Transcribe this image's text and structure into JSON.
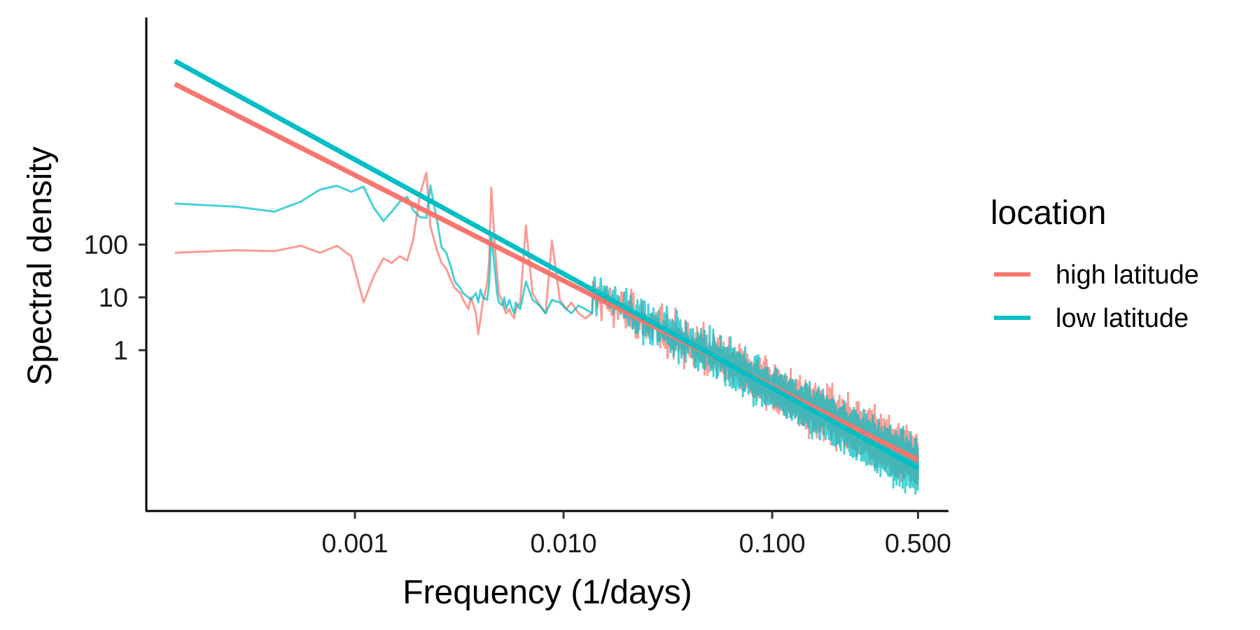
{
  "chart_data": {
    "type": "line",
    "xlabel": "Frequency (1/days)",
    "ylabel": "Spectral density",
    "x_scale": "log10",
    "y_scale": "log10",
    "xlim": [
      0.0001,
      0.7
    ],
    "ylim": [
      0.0009,
      2000000
    ],
    "x_ticks": [
      0.001,
      0.01,
      0.1,
      0.5
    ],
    "x_tick_labels": [
      "0.001",
      "0.010",
      "0.100",
      "0.500"
    ],
    "y_ticks": [
      1,
      10,
      100
    ],
    "y_tick_labels": [
      "1",
      "10",
      "100"
    ],
    "grid": false,
    "legend": {
      "title": "location",
      "placement": "right",
      "entries": [
        "high latitude",
        "low latitude"
      ]
    },
    "series": [
      {
        "name": "high latitude",
        "color": "#F8766D",
        "kind": "spectrum",
        "x": [
          0.000137,
          0.00027,
          0.00041,
          0.00055,
          0.00068,
          0.00082,
          0.00096,
          0.0011,
          0.00123,
          0.00137,
          0.0015,
          0.00164,
          0.00178,
          0.0019,
          0.00205,
          0.0022,
          0.0023,
          0.00247,
          0.0026,
          0.00274,
          0.0029,
          0.00301,
          0.0032,
          0.0033,
          0.0035,
          0.0036,
          0.0038,
          0.0039,
          0.004,
          0.0041,
          0.0043,
          0.0044,
          0.0045,
          0.0047,
          0.0048,
          0.0049,
          0.0051,
          0.0052,
          0.0053,
          0.0055,
          0.0056,
          0.0058,
          0.0059,
          0.0062,
          0.0066,
          0.0071,
          0.0077,
          0.0082,
          0.0088,
          0.0096,
          0.0103,
          0.0109,
          0.0118,
          0.0127,
          0.0137
        ],
        "y": [
          70,
          78,
          75,
          95,
          70,
          95,
          60,
          8,
          25,
          55,
          45,
          60,
          50,
          120,
          900,
          2300,
          220,
          80,
          45,
          35,
          20,
          15,
          12,
          9,
          6,
          10,
          5,
          2,
          4,
          8,
          18,
          50,
          1200,
          80,
          30,
          12,
          8,
          6,
          5,
          6,
          5,
          4,
          6,
          8,
          230,
          12,
          7,
          5,
          120,
          9,
          6,
          8,
          5,
          4,
          5
        ]
      },
      {
        "name": "low latitude",
        "color": "#00BFC4",
        "kind": "spectrum",
        "x": [
          0.000137,
          0.00027,
          0.00041,
          0.00055,
          0.00068,
          0.00082,
          0.00096,
          0.0011,
          0.00123,
          0.00137,
          0.0015,
          0.00164,
          0.00178,
          0.0019,
          0.00205,
          0.0022,
          0.0023,
          0.00247,
          0.0026,
          0.00274,
          0.0029,
          0.00301,
          0.0032,
          0.0033,
          0.0035,
          0.0036,
          0.0038,
          0.0039,
          0.004,
          0.0041,
          0.0043,
          0.0044,
          0.0045,
          0.0047,
          0.0048,
          0.0049,
          0.0051,
          0.0052,
          0.0053,
          0.0055,
          0.0056,
          0.0058,
          0.0059,
          0.0062,
          0.0066,
          0.0071,
          0.0077,
          0.0082,
          0.0088,
          0.0096,
          0.0103,
          0.0109,
          0.0118,
          0.0127,
          0.0137
        ],
        "y": [
          600,
          520,
          420,
          650,
          1100,
          1300,
          1000,
          1250,
          500,
          280,
          420,
          650,
          800,
          450,
          330,
          320,
          1300,
          300,
          90,
          70,
          35,
          20,
          15,
          12,
          10,
          9,
          12,
          8,
          14,
          10,
          9,
          18,
          160,
          30,
          12,
          8,
          7,
          10,
          6,
          9,
          7,
          5,
          8,
          6,
          20,
          9,
          7,
          5,
          9,
          8,
          6,
          5,
          7,
          6,
          5
        ]
      },
      {
        "name": "high latitude",
        "color": "#F8766D",
        "kind": "power-law fit",
        "x": [
          0.000137,
          0.5
        ],
        "y": [
          110000,
          0.0083
        ]
      },
      {
        "name": "low latitude",
        "color": "#00BFC4",
        "kind": "power-law fit",
        "x": [
          0.000137,
          0.5
        ],
        "y": [
          300000,
          0.0059
        ]
      }
    ]
  }
}
